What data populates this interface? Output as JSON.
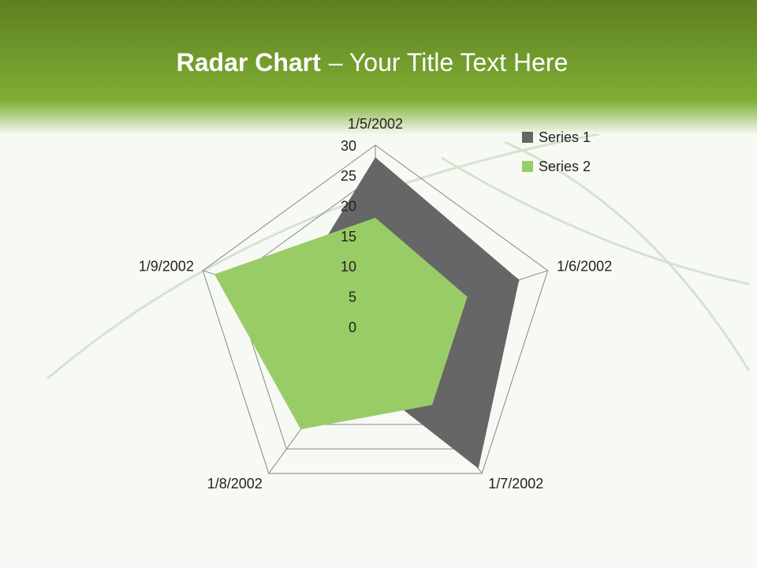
{
  "chart_data": {
    "type": "radar",
    "title": "Radar Chart",
    "subtitle": "– Your Title Text Here",
    "categories": [
      "1/5/2002",
      "1/6/2002",
      "1/7/2002",
      "1/8/2002",
      "1/9/2002"
    ],
    "series": [
      {
        "name": "Series 1",
        "color": "#666666",
        "values": [
          28,
          25,
          29,
          8,
          15
        ]
      },
      {
        "name": "Series 2",
        "color": "#99cc66",
        "values": [
          18,
          16,
          16,
          21,
          28
        ]
      }
    ],
    "ylim": [
      0,
      30
    ],
    "yticks": [
      0,
      5,
      10,
      15,
      20,
      25,
      30
    ],
    "grid": true,
    "legend": "top-right"
  }
}
